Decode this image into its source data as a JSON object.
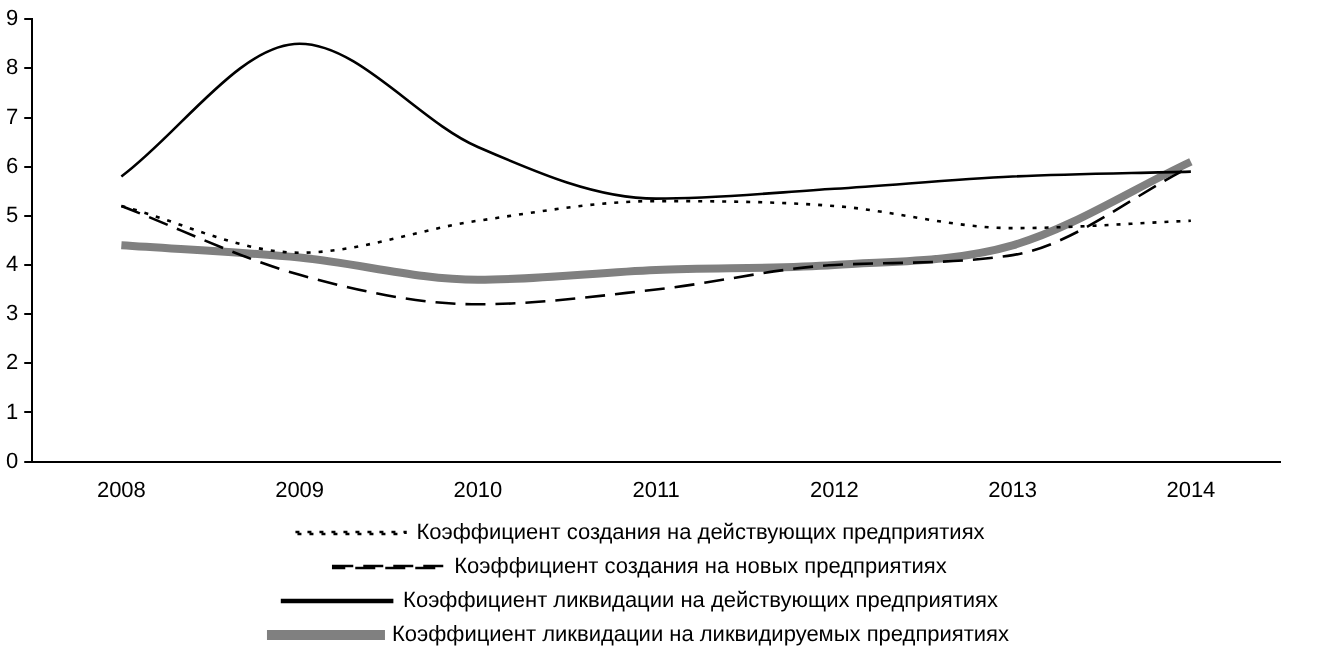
{
  "chart_data": {
    "type": "line",
    "categories": [
      "2008",
      "2009",
      "2010",
      "2011",
      "2012",
      "2013",
      "2014"
    ],
    "series": [
      {
        "name": "Коэффициент создания на действующих предприятиях",
        "color": "#000000",
        "line_style": "dotted",
        "values": [
          5.2,
          4.25,
          4.9,
          5.3,
          5.2,
          4.75,
          4.9
        ]
      },
      {
        "name": "Коэффициент создания на новых предприятиях",
        "color": "#000000",
        "line_style": "dashed",
        "values": [
          5.2,
          3.8,
          3.2,
          3.5,
          4.0,
          4.2,
          6.0
        ]
      },
      {
        "name": "Коэффициент ликвидации на действующих предприятиях",
        "color": "#000000",
        "line_style": "solid",
        "values": [
          5.8,
          8.5,
          6.4,
          5.35,
          5.55,
          5.8,
          5.9
        ]
      },
      {
        "name": "Коэффициент ликвидации на ликвидируемых предприятиях",
        "color": "#808080",
        "line_style": "solid",
        "values": [
          4.4,
          4.15,
          3.7,
          3.9,
          4.0,
          4.4,
          6.1
        ]
      }
    ],
    "ylim": [
      0,
      9
    ],
    "yticks": [
      0,
      1,
      2,
      3,
      4,
      5,
      6,
      7,
      8,
      9
    ],
    "grid": false,
    "legend": "bottom",
    "marker": "none"
  }
}
